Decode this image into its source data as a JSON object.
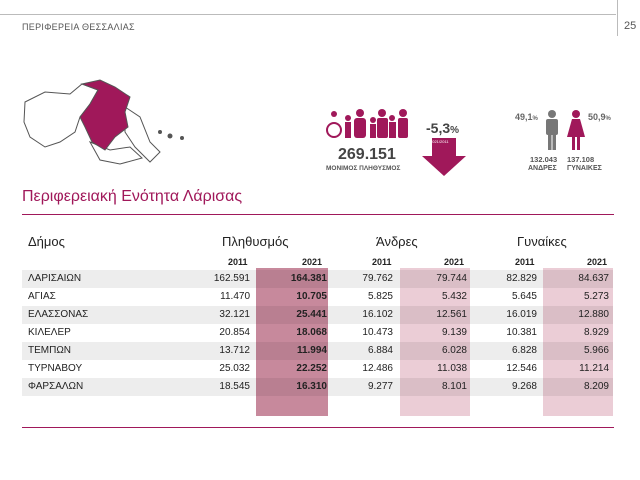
{
  "header": {
    "region": "ΠΕΡΙΦΕΡΕΙΑ ΘΕΣΣΑΛΙΑΣ",
    "page": "25"
  },
  "title": "Περιφερειακή Ενότητα Λάρισας",
  "stats": {
    "population": "269.151",
    "population_label": "ΜΟΝΙΜΟΣ ΠΛΗΘΥΣΜΟΣ",
    "change": "-5,3",
    "change_unit": "%",
    "change_period": "2021/2011",
    "men_pct": "49,1",
    "women_pct": "50,9",
    "pct_unit": "%",
    "men": "132.043",
    "men_label": "ΑΝΔΡΕΣ",
    "women": "137.108",
    "women_label": "ΓΥΝΑΙΚΕΣ"
  },
  "table": {
    "col_municipality": "Δήμος",
    "groups": [
      "Πληθυσμός",
      "Άνδρες",
      "Γυναίκες"
    ],
    "years": [
      "2011",
      "2021"
    ],
    "rows": [
      {
        "name": "ΛΑΡΙΣΑΙΩΝ",
        "v": [
          "162.591",
          "164.381",
          "79.762",
          "79.744",
          "82.829",
          "84.637"
        ]
      },
      {
        "name": "ΑΓΙΑΣ",
        "v": [
          "11.470",
          "10.705",
          "5.825",
          "5.432",
          "5.645",
          "5.273"
        ]
      },
      {
        "name": "ΕΛΑΣΣΟΝΑΣ",
        "v": [
          "32.121",
          "25.441",
          "16.102",
          "12.561",
          "16.019",
          "12.880"
        ]
      },
      {
        "name": "ΚΙΛΕΛΕΡ",
        "v": [
          "20.854",
          "18.068",
          "10.473",
          "9.139",
          "10.381",
          "8.929"
        ]
      },
      {
        "name": "ΤΕΜΠΩΝ",
        "v": [
          "13.712",
          "11.994",
          "6.884",
          "6.028",
          "6.828",
          "5.966"
        ]
      },
      {
        "name": "ΤΥΡΝΑΒΟΥ",
        "v": [
          "25.032",
          "22.252",
          "12.486",
          "11.038",
          "12.546",
          "11.214"
        ]
      },
      {
        "name": "ΦΑΡΣΑΛΩΝ",
        "v": [
          "18.545",
          "16.310",
          "9.277",
          "8.101",
          "9.268",
          "8.209"
        ]
      }
    ]
  },
  "colors": {
    "accent": "#a0185a",
    "grey": "#777777"
  }
}
